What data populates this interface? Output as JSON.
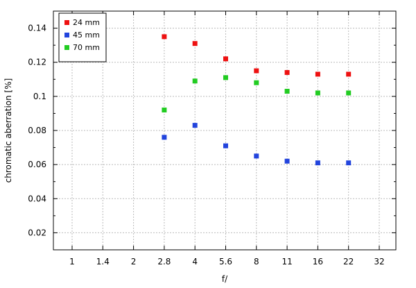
{
  "chart_data": {
    "type": "scatter",
    "title": "",
    "xlabel": "f/",
    "ylabel": "chromatic aberration [%]",
    "x_categories": [
      "1",
      "1.4",
      "2",
      "2.8",
      "4",
      "5.6",
      "8",
      "11",
      "16",
      "22",
      "32"
    ],
    "y_ticks": [
      "0.02",
      "0.04",
      "0.06",
      "0.08",
      "0.1",
      "0.12",
      "0.14"
    ],
    "ylim": [
      0.01,
      0.15
    ],
    "grid": true,
    "legend_position": "top-left",
    "series": [
      {
        "name": "24 mm",
        "color": "#ee1111",
        "x": [
          "2.8",
          "4",
          "5.6",
          "8",
          "11",
          "16",
          "22"
        ],
        "values": [
          0.135,
          0.131,
          0.122,
          0.115,
          0.114,
          0.113,
          0.113
        ]
      },
      {
        "name": "45 mm",
        "color": "#2244dd",
        "x": [
          "2.8",
          "4",
          "5.6",
          "8",
          "11",
          "16",
          "22"
        ],
        "values": [
          0.076,
          0.083,
          0.071,
          0.065,
          0.062,
          0.061,
          0.061
        ]
      },
      {
        "name": "70 mm",
        "color": "#22cc22",
        "x": [
          "2.8",
          "4",
          "5.6",
          "8",
          "11",
          "16",
          "22"
        ],
        "values": [
          0.092,
          0.109,
          0.111,
          0.108,
          0.103,
          0.102,
          0.102
        ]
      }
    ]
  }
}
